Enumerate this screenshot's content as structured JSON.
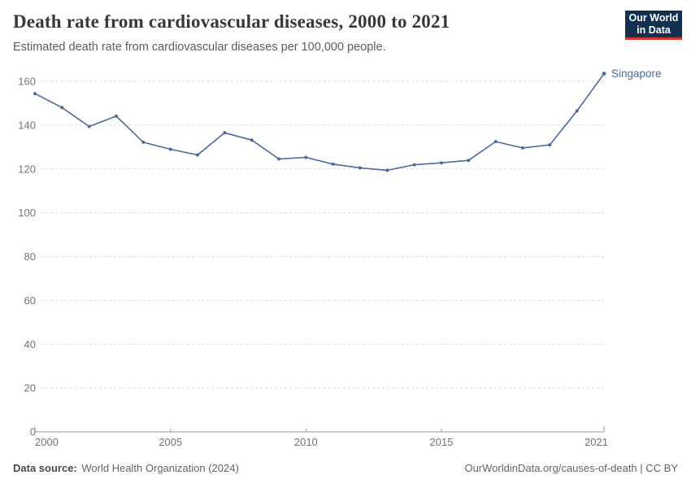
{
  "header": {
    "title": "Death rate from cardiovascular diseases, 2000 to 2021",
    "subtitle": "Estimated death rate from cardiovascular diseases per 100,000 people.",
    "logo": {
      "line1": "Our World",
      "line2": "in Data",
      "bg_color": "#12304F",
      "bar_color": "#D4382E"
    }
  },
  "chart_data": {
    "type": "line",
    "title": "Death rate from cardiovascular diseases, 2000 to 2021",
    "xlabel": "",
    "ylabel": "",
    "x": [
      2000,
      2001,
      2002,
      2003,
      2004,
      2005,
      2006,
      2007,
      2008,
      2009,
      2010,
      2011,
      2012,
      2013,
      2014,
      2015,
      2016,
      2017,
      2018,
      2019,
      2020,
      2021
    ],
    "series": [
      {
        "name": "Singapore",
        "color": "#4C6A9C",
        "values": [
          154.4,
          148.0,
          139.4,
          144.1,
          132.2,
          129.0,
          126.4,
          136.5,
          133.2,
          124.6,
          125.3,
          122.2,
          120.5,
          119.4,
          121.9,
          122.8,
          123.9,
          132.5,
          129.6,
          131.0,
          146.5,
          163.5
        ]
      }
    ],
    "x_ticks": [
      2000,
      2005,
      2010,
      2015,
      2021
    ],
    "y_ticks": [
      0,
      20,
      40,
      60,
      80,
      100,
      120,
      140,
      160
    ],
    "xlim": [
      2000,
      2021
    ],
    "ylim": [
      0,
      160
    ],
    "grid": "horizontal-dashed",
    "legend": "series-label-at-line-end"
  },
  "footer": {
    "datasource_label": "Data source:",
    "datasource_value": "World Health Organization (2024)",
    "attribution": "OurWorldinData.org/causes-of-death | CC BY"
  }
}
